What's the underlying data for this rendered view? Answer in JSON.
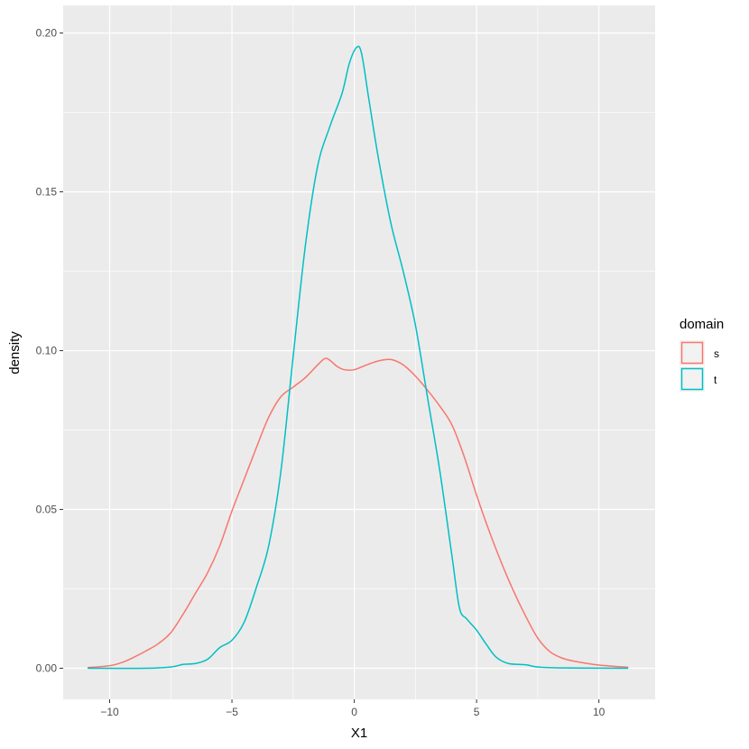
{
  "chart_data": {
    "type": "line",
    "subtype": "density",
    "xlabel": "X1",
    "ylabel": "density",
    "xlim": [
      -11.9,
      12.3
    ],
    "ylim": [
      -0.0098,
      0.2087
    ],
    "x_ticks": [
      -10,
      -5,
      0,
      5,
      10
    ],
    "x_tick_labels": [
      "−10",
      "−5",
      "0",
      "5",
      "10"
    ],
    "y_ticks": [
      0.0,
      0.05,
      0.1,
      0.15,
      0.2
    ],
    "y_tick_labels": [
      "0.00",
      "0.05",
      "0.10",
      "0.15",
      "0.20"
    ],
    "grid": true,
    "legend": {
      "title": "domain",
      "position": "right"
    },
    "series": [
      {
        "name": "s",
        "color": "#F8766D",
        "points": [
          [
            -10.9,
            0.0002
          ],
          [
            -10.0,
            0.0008
          ],
          [
            -9.5,
            0.0018
          ],
          [
            -9.0,
            0.0035
          ],
          [
            -8.5,
            0.0055
          ],
          [
            -8.0,
            0.0078
          ],
          [
            -7.5,
            0.0112
          ],
          [
            -7.0,
            0.017
          ],
          [
            -6.5,
            0.0235
          ],
          [
            -6.0,
            0.03
          ],
          [
            -5.5,
            0.0385
          ],
          [
            -5.0,
            0.0495
          ],
          [
            -4.5,
            0.0595
          ],
          [
            -4.0,
            0.0695
          ],
          [
            -3.5,
            0.079
          ],
          [
            -3.0,
            0.0855
          ],
          [
            -2.5,
            0.0885
          ],
          [
            -2.0,
            0.0915
          ],
          [
            -1.5,
            0.0955
          ],
          [
            -1.2,
            0.0975
          ],
          [
            -1.0,
            0.097
          ],
          [
            -0.7,
            0.095
          ],
          [
            -0.4,
            0.094
          ],
          [
            0.0,
            0.094
          ],
          [
            0.5,
            0.0955
          ],
          [
            1.0,
            0.0968
          ],
          [
            1.5,
            0.0972
          ],
          [
            2.0,
            0.0955
          ],
          [
            2.5,
            0.092
          ],
          [
            3.0,
            0.0875
          ],
          [
            3.5,
            0.0825
          ],
          [
            4.0,
            0.0765
          ],
          [
            4.5,
            0.0665
          ],
          [
            5.0,
            0.0545
          ],
          [
            5.5,
            0.0435
          ],
          [
            6.0,
            0.0335
          ],
          [
            6.5,
            0.0245
          ],
          [
            7.0,
            0.0165
          ],
          [
            7.5,
            0.0095
          ],
          [
            8.0,
            0.0052
          ],
          [
            8.5,
            0.0032
          ],
          [
            9.0,
            0.0022
          ],
          [
            10.0,
            0.001
          ],
          [
            11.2,
            0.0003
          ]
        ]
      },
      {
        "name": "t",
        "color": "#00BFC4",
        "points": [
          [
            -10.9,
            0.0
          ],
          [
            -8.5,
            0.0
          ],
          [
            -7.5,
            0.0004
          ],
          [
            -7.0,
            0.0012
          ],
          [
            -6.5,
            0.0015
          ],
          [
            -6.0,
            0.0028
          ],
          [
            -5.5,
            0.0065
          ],
          [
            -5.0,
            0.0088
          ],
          [
            -4.5,
            0.0145
          ],
          [
            -4.0,
            0.0255
          ],
          [
            -3.5,
            0.0385
          ],
          [
            -3.0,
            0.062
          ],
          [
            -2.5,
            0.098
          ],
          [
            -2.0,
            0.133
          ],
          [
            -1.5,
            0.158
          ],
          [
            -1.0,
            0.1705
          ],
          [
            -0.5,
            0.181
          ],
          [
            -0.2,
            0.1905
          ],
          [
            0.1,
            0.1955
          ],
          [
            0.3,
            0.1935
          ],
          [
            0.6,
            0.179
          ],
          [
            1.0,
            0.16
          ],
          [
            1.5,
            0.14
          ],
          [
            2.0,
            0.125
          ],
          [
            2.5,
            0.108
          ],
          [
            3.0,
            0.085
          ],
          [
            3.5,
            0.062
          ],
          [
            4.0,
            0.035
          ],
          [
            4.3,
            0.019
          ],
          [
            4.6,
            0.0155
          ],
          [
            5.0,
            0.012
          ],
          [
            5.4,
            0.0075
          ],
          [
            5.8,
            0.0035
          ],
          [
            6.3,
            0.0015
          ],
          [
            7.0,
            0.0011
          ],
          [
            7.5,
            0.0004
          ],
          [
            8.5,
            0.0001
          ],
          [
            11.2,
            0.0
          ]
        ]
      }
    ]
  }
}
